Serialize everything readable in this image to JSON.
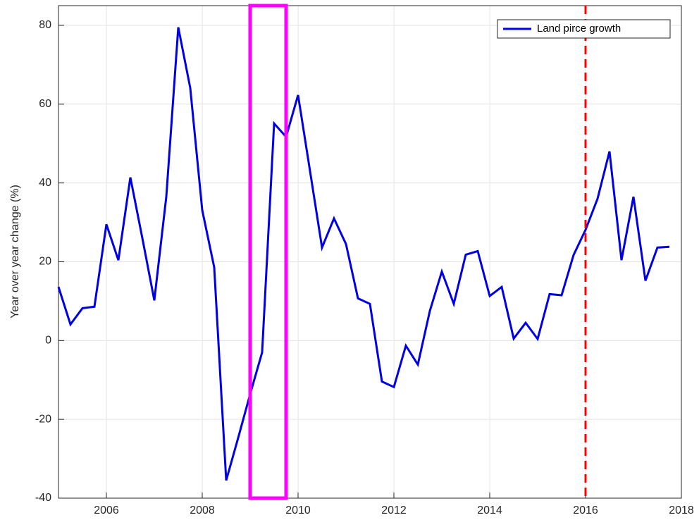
{
  "chart_data": {
    "type": "line",
    "y_label": "Year over year change (%)",
    "x": [
      2005,
      2005.25,
      2005.5,
      2005.75,
      2006,
      2006.25,
      2006.5,
      2006.75,
      2007,
      2007.25,
      2007.5,
      2007.75,
      2008,
      2008.25,
      2008.5,
      2008.75,
      2009,
      2009.25,
      2009.5,
      2009.75,
      2010,
      2010.25,
      2010.5,
      2010.75,
      2011,
      2011.25,
      2011.5,
      2011.75,
      2012,
      2012.25,
      2012.5,
      2012.75,
      2013,
      2013.25,
      2013.5,
      2013.75,
      2014,
      2014.25,
      2014.5,
      2014.75,
      2015,
      2015.25,
      2015.5,
      2015.75,
      2016,
      2016.25,
      2016.5,
      2016.75,
      2017,
      2017.25,
      2017.5,
      2017.75
    ],
    "series": [
      {
        "name": "Land pirce growth",
        "color": "#0000e6",
        "values": [
          13.6,
          4.1,
          8.2,
          8.6,
          29.5,
          20.4,
          41.4,
          26,
          10.2,
          36.5,
          79.5,
          64.1,
          33.1,
          18.6,
          -35.5,
          -24.7,
          -13.6,
          -3.0,
          55.1,
          51.7,
          62.3,
          43,
          23.6,
          31,
          24.5,
          10.7,
          9.3,
          -10.4,
          -11.8,
          -1.3,
          -6.1,
          7.5,
          17.5,
          9.3,
          21.8,
          22.7,
          11.3,
          13.6,
          0.5,
          4.5,
          0.4,
          11.8,
          11.5,
          21.7,
          28.1,
          36,
          48,
          20.4,
          36.5,
          15.2,
          23.6,
          23.8
        ]
      }
    ],
    "xlim": [
      2005,
      2018
    ],
    "xticks": [
      2006,
      2008,
      2010,
      2012,
      2014,
      2016,
      2018
    ],
    "ylim": [
      -40,
      85
    ],
    "yticks": [
      -40,
      -20,
      0,
      20,
      40,
      60,
      80
    ],
    "grid": true,
    "legend": "upper right",
    "highlight_range": {
      "x": [
        2009,
        2009.75
      ],
      "color": "#ff00ff"
    },
    "vline": {
      "x": 2016,
      "color": "#ff0000"
    }
  }
}
